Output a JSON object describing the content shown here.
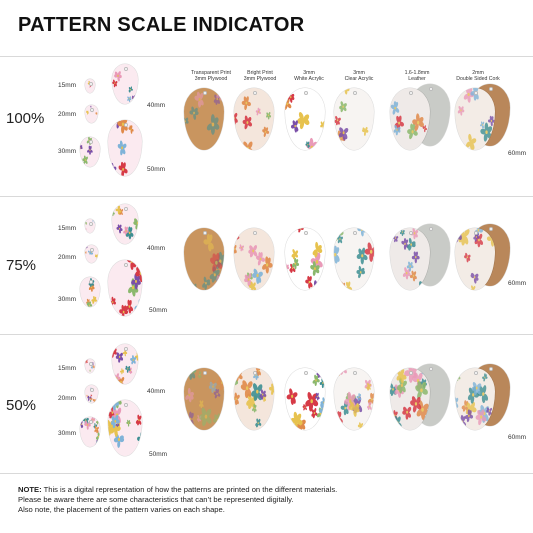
{
  "title": "PATTERN SCALE INDICATOR",
  "materials": [
    {
      "line1": "Transparent Print",
      "line2": "3mm Plywood",
      "type": "plywood"
    },
    {
      "line1": "Bright Print",
      "line2": "3mm Plywood",
      "type": "bright"
    },
    {
      "line1": "3mm",
      "line2": "White Acrylic",
      "type": "white"
    },
    {
      "line1": "3mm",
      "line2": "Clear Acrylic",
      "type": "clear"
    },
    {
      "line1": "1.6-1.8mm",
      "line2": "Leather",
      "type": "leather"
    },
    {
      "line1": "2mm",
      "line2": "Double Sided Cork",
      "type": "cork"
    }
  ],
  "sizes": [
    "15mm",
    "20mm",
    "30mm",
    "40mm",
    "50mm"
  ],
  "side_size": "60mm",
  "scales": [
    {
      "label": "100%",
      "value": 100
    },
    {
      "label": "75%",
      "value": 75
    },
    {
      "label": "50%",
      "value": 50
    }
  ],
  "note": {
    "label": "NOTE:",
    "line1": " This is a digital representation of how the patterns are printed on the different materials.",
    "line2": "Please be aware there are some characteristics that can’t be represented digitally.",
    "line3": "Also note, the placement of the pattern varies on each shape."
  },
  "colors": {
    "plywood": "#c9955f",
    "cork": "#b9875a",
    "leather": "#c9cbc7",
    "white": "#ffffff",
    "red": "#d63a46",
    "pink": "#e99ab8",
    "teal": "#3e8f93",
    "purple": "#7a4fa8",
    "orange": "#e08a4a",
    "yellow": "#e7c24e",
    "blue": "#7fb3d8",
    "green": "#8bb86d"
  }
}
